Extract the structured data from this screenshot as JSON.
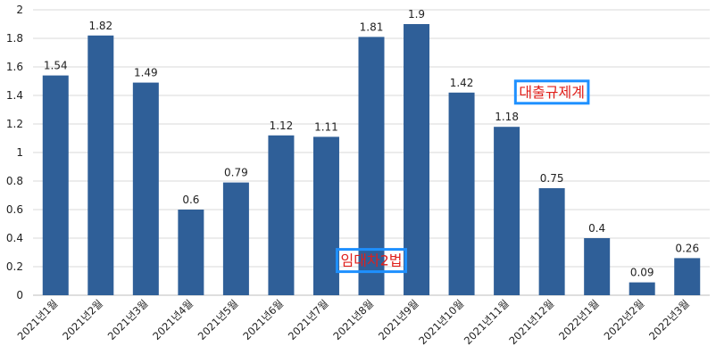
{
  "chart_data": {
    "type": "bar",
    "categories": [
      "2021년1월",
      "2021년2월",
      "2021년3월",
      "2021년4월",
      "2021년5월",
      "2021년6월",
      "2021년7월",
      "2021년8월",
      "2021년9월",
      "2021년10월",
      "2021년11월",
      "2021년12월",
      "2022년1월",
      "2022년2월",
      "2022년3월"
    ],
    "values": [
      1.54,
      1.82,
      1.49,
      0.6,
      0.79,
      1.12,
      1.11,
      1.81,
      1.9,
      1.42,
      1.18,
      0.75,
      0.4,
      0.09,
      0.26
    ],
    "data_labels": [
      "1.54",
      "1.82",
      "1.49",
      "0.6",
      "0.79",
      "1.12",
      "1.11",
      "1.81",
      "1.9",
      "1.42",
      "1.18",
      "0.75",
      "0.4",
      "0.09",
      "0.26"
    ],
    "title": "",
    "xlabel": "",
    "ylabel": "",
    "ylim": [
      0,
      2
    ],
    "yticks": [
      0,
      0.2,
      0.4,
      0.6,
      0.8,
      1,
      1.2,
      1.4,
      1.6,
      1.8,
      2
    ],
    "ytick_labels": [
      "0",
      "0.2",
      "0.4",
      "0.6",
      "0.8",
      "1",
      "1.2",
      "1.4",
      "1.6",
      "1.8",
      "2"
    ],
    "grid": true,
    "legend": "none",
    "bar_color": "#2f5f98",
    "annotations": [
      {
        "text": "대출규제계",
        "x_category": "2021년12월",
        "y": 1.42,
        "text_color": "#e0201c",
        "border_color": "#1e90ff"
      },
      {
        "text": "임대차2법",
        "x_category": "2021년8월",
        "y": 0.24,
        "text_color": "#e0201c",
        "border_color": "#1e90ff"
      }
    ]
  }
}
